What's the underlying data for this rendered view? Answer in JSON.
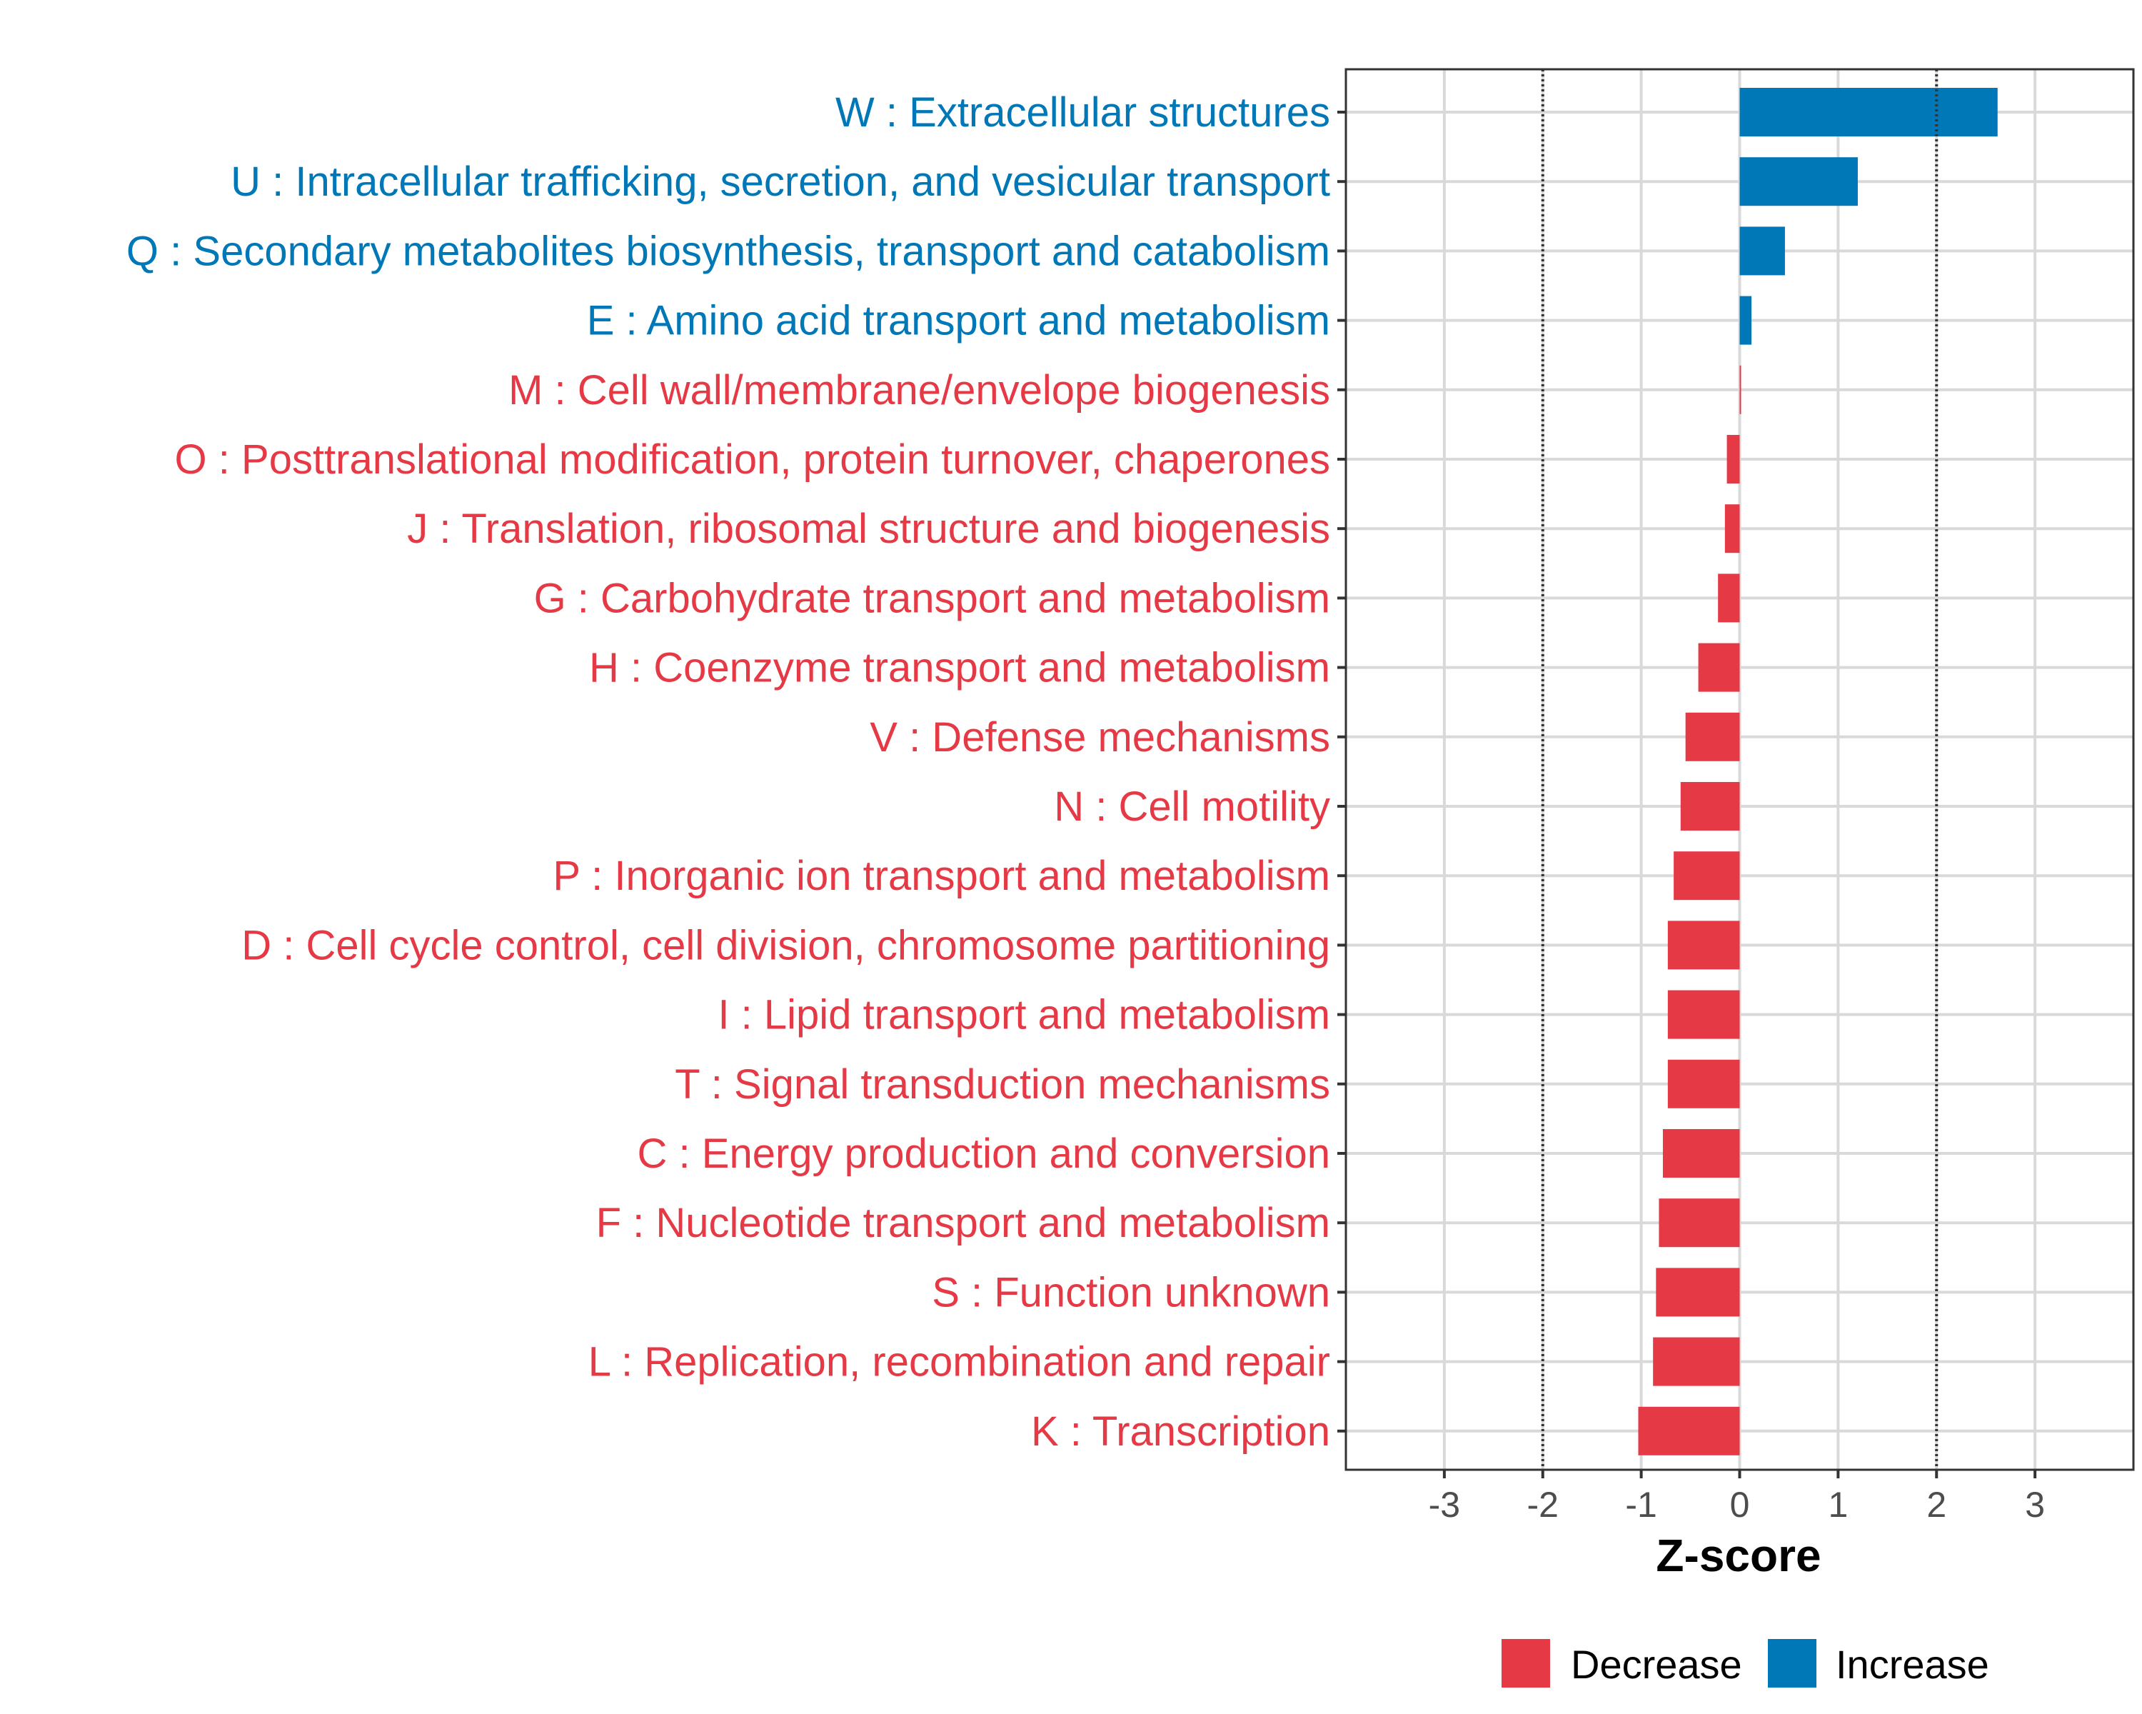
{
  "chart_data": {
    "type": "bar",
    "orientation": "horizontal",
    "title": "",
    "xlabel": "Z-score",
    "ylabel": "",
    "xlim": [
      -4,
      4
    ],
    "xticks": [
      -3,
      -2,
      -1,
      0,
      1,
      2,
      3
    ],
    "reference_lines": [
      -2,
      2
    ],
    "grid": true,
    "legend_position": "bottom",
    "colors": {
      "Decrease": "#E63946",
      "Increase": "#0077B6"
    },
    "legend": [
      {
        "label": "Decrease",
        "color": "#E63946"
      },
      {
        "label": "Increase",
        "color": "#0077B6"
      }
    ],
    "categories": [
      "W : Extracellular structures",
      "U : Intracellular trafficking, secretion, and vesicular transport",
      "Q : Secondary metabolites biosynthesis, transport and catabolism",
      "E : Amino acid transport and metabolism",
      "M : Cell wall/membrane/envelope biogenesis",
      "O : Posttranslational modification, protein turnover, chaperones",
      "J : Translation, ribosomal structure and biogenesis",
      "G : Carbohydrate transport and metabolism",
      "H : Coenzyme transport and metabolism",
      "V : Defense mechanisms",
      "N : Cell motility",
      "P : Inorganic ion transport and metabolism",
      "D : Cell cycle control, cell division, chromosome partitioning",
      "I : Lipid transport and metabolism",
      "T : Signal transduction mechanisms",
      "C : Energy production and conversion",
      "F : Nucleotide transport and metabolism",
      "S : Function unknown",
      "L : Replication, recombination and repair",
      "K : Transcription"
    ],
    "values": [
      2.62,
      1.2,
      0.46,
      0.12,
      0.0,
      -0.13,
      -0.15,
      -0.22,
      -0.42,
      -0.55,
      -0.6,
      -0.67,
      -0.73,
      -0.73,
      -0.73,
      -0.78,
      -0.82,
      -0.85,
      -0.88,
      -1.03
    ],
    "groups": [
      "Increase",
      "Increase",
      "Increase",
      "Increase",
      "Decrease",
      "Decrease",
      "Decrease",
      "Decrease",
      "Decrease",
      "Decrease",
      "Decrease",
      "Decrease",
      "Decrease",
      "Decrease",
      "Decrease",
      "Decrease",
      "Decrease",
      "Decrease",
      "Decrease",
      "Decrease"
    ]
  }
}
